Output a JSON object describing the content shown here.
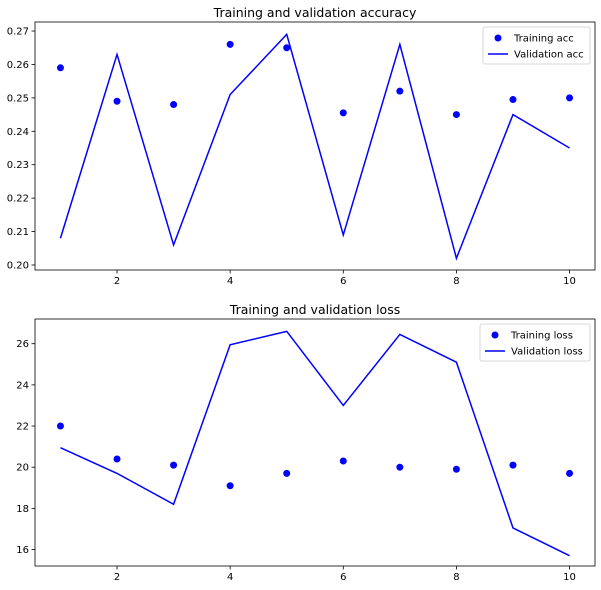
{
  "chart_data": [
    {
      "type": "line",
      "title": "Training and validation accuracy",
      "xlabel": "",
      "ylabel": "",
      "x": [
        1,
        2,
        3,
        4,
        5,
        6,
        7,
        8,
        9,
        10
      ],
      "xlim": [
        0.55,
        10.45
      ],
      "ylim": [
        0.1985,
        0.2727
      ],
      "xticks": [
        2,
        4,
        6,
        8,
        10
      ],
      "xtick_labels": [
        "2",
        "4",
        "6",
        "8",
        "10"
      ],
      "yticks": [
        0.2,
        0.21,
        0.22,
        0.23,
        0.24,
        0.25,
        0.26,
        0.27
      ],
      "ytick_labels": [
        "0.20",
        "0.21",
        "0.22",
        "0.23",
        "0.24",
        "0.25",
        "0.26",
        "0.27"
      ],
      "grid": false,
      "legend_position": "top-right",
      "series": [
        {
          "name": "Training acc",
          "style": "markers",
          "color": "#0000ff",
          "values": [
            0.259,
            0.249,
            0.248,
            0.266,
            0.265,
            0.2455,
            0.252,
            0.245,
            0.2495,
            0.25
          ]
        },
        {
          "name": "Validation acc",
          "style": "line",
          "color": "#0000ff",
          "values": [
            0.208,
            0.263,
            0.206,
            0.251,
            0.269,
            0.209,
            0.266,
            0.202,
            0.245,
            0.235
          ]
        }
      ]
    },
    {
      "type": "line",
      "title": "Training and validation loss",
      "xlabel": "",
      "ylabel": "",
      "x": [
        1,
        2,
        3,
        4,
        5,
        6,
        7,
        8,
        9,
        10
      ],
      "xlim": [
        0.55,
        10.45
      ],
      "ylim": [
        15.2,
        27.2
      ],
      "xticks": [
        2,
        4,
        6,
        8,
        10
      ],
      "xtick_labels": [
        "2",
        "4",
        "6",
        "8",
        "10"
      ],
      "yticks": [
        16,
        18,
        20,
        22,
        24,
        26
      ],
      "ytick_labels": [
        "16",
        "18",
        "20",
        "22",
        "24",
        "26"
      ],
      "grid": false,
      "legend_position": "top-right",
      "series": [
        {
          "name": "Training loss",
          "style": "markers",
          "color": "#0000ff",
          "values": [
            22.0,
            20.4,
            20.1,
            19.1,
            19.7,
            20.3,
            20.0,
            19.9,
            20.1,
            19.7
          ]
        },
        {
          "name": "Validation loss",
          "style": "line",
          "color": "#0000ff",
          "values": [
            20.95,
            19.7,
            18.2,
            25.95,
            26.6,
            23.0,
            26.45,
            25.1,
            17.05,
            15.7
          ]
        }
      ]
    }
  ]
}
